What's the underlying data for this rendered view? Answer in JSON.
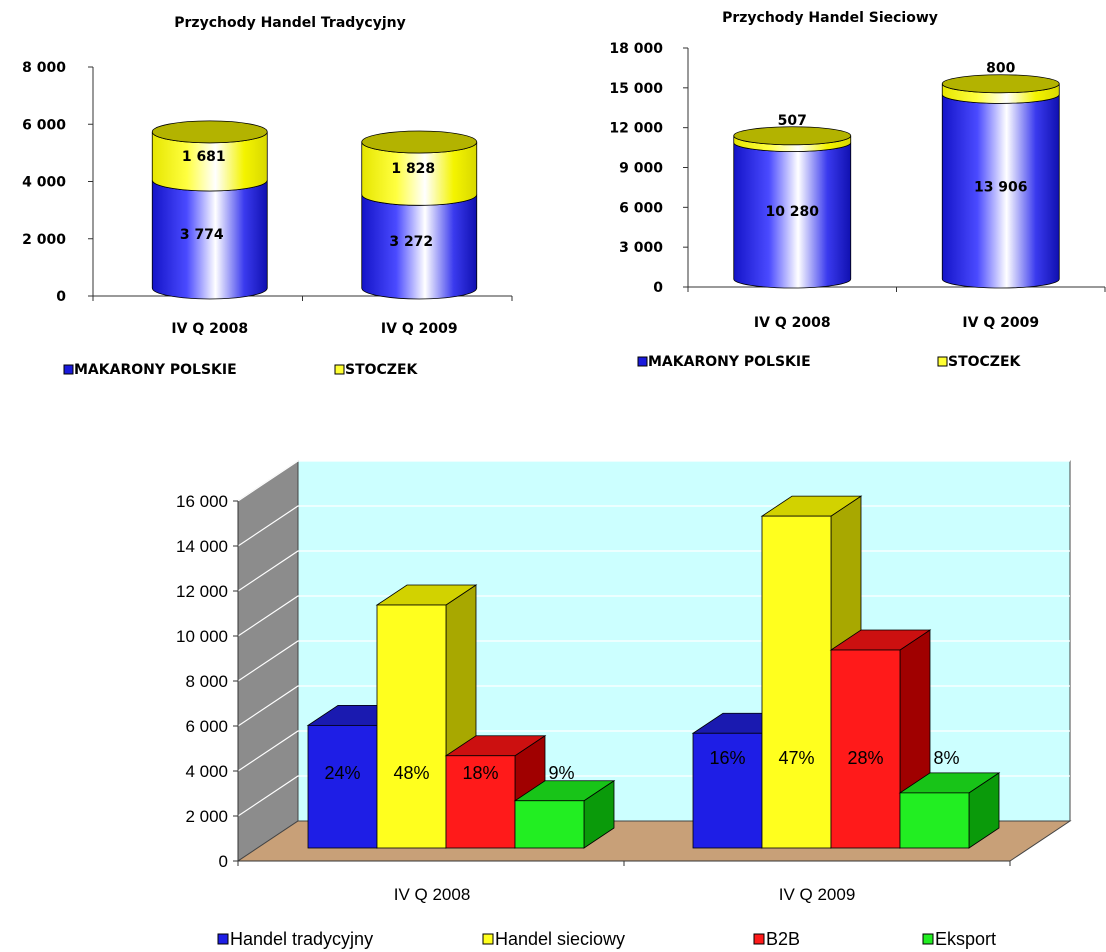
{
  "chart_data": [
    {
      "type": "bar",
      "stacked": true,
      "shape": "cylinder",
      "title": "Przychody Handel Tradycyjny",
      "categories": [
        "IV Q 2008",
        "IV Q 2009"
      ],
      "yticks": [
        "0",
        "2 000",
        "4 000",
        "6 000",
        "8 000"
      ],
      "ylim": [
        0,
        8000
      ],
      "series": [
        {
          "name": "MAKARONY POLSKIE",
          "values": [
            3774,
            3272
          ],
          "labels": [
            "3 774",
            "3 272"
          ],
          "color": "#1a1adc"
        },
        {
          "name": "STOCZEK",
          "values": [
            1681,
            1828
          ],
          "labels": [
            "1 681",
            "1 828"
          ],
          "color": "#ffff33"
        }
      ],
      "legend": "bottom"
    },
    {
      "type": "bar",
      "stacked": true,
      "shape": "cylinder",
      "title": "Przychody Handel Sieciowy",
      "categories": [
        "IV Q 2008",
        "IV Q 2009"
      ],
      "yticks": [
        "0",
        "3 000",
        "6 000",
        "9 000",
        "12 000",
        "15 000",
        "18 000"
      ],
      "ylim": [
        0,
        18000
      ],
      "series": [
        {
          "name": "MAKARONY POLSKIE",
          "values": [
            10280,
            13906
          ],
          "labels": [
            "10 280",
            "13 906"
          ],
          "color": "#1a1adc"
        },
        {
          "name": "STOCZEK",
          "values": [
            507,
            800
          ],
          "labels": [
            "507",
            "800"
          ],
          "color": "#ffff33"
        }
      ],
      "legend": "bottom"
    },
    {
      "type": "bar",
      "shape": "3d-box",
      "categories": [
        "IV Q 2008",
        "IV Q 2009"
      ],
      "yticks": [
        "0",
        "2 000",
        "4 000",
        "6 000",
        "8 000",
        "10 000",
        "12 000",
        "14 000",
        "16 000"
      ],
      "ylim": [
        0,
        16000
      ],
      "series": [
        {
          "name": "Handel tradycyjny",
          "values": [
            5450,
            5100
          ],
          "labels": [
            "24%",
            "16%"
          ],
          "color": "#1e1ee6"
        },
        {
          "name": "Handel sieciowy",
          "values": [
            10800,
            14750
          ],
          "labels": [
            "48%",
            "47%"
          ],
          "color": "#ffff1e"
        },
        {
          "name": "B2B",
          "values": [
            4100,
            8800
          ],
          "labels": [
            "18%",
            "28%"
          ],
          "color": "#ff1a1a"
        },
        {
          "name": "Eksport",
          "values": [
            2100,
            2450
          ],
          "labels": [
            "9%",
            "8%"
          ],
          "color": "#22ee22"
        }
      ],
      "background": "#ccffff",
      "floor": "#c8a078",
      "legend": "bottom"
    }
  ]
}
